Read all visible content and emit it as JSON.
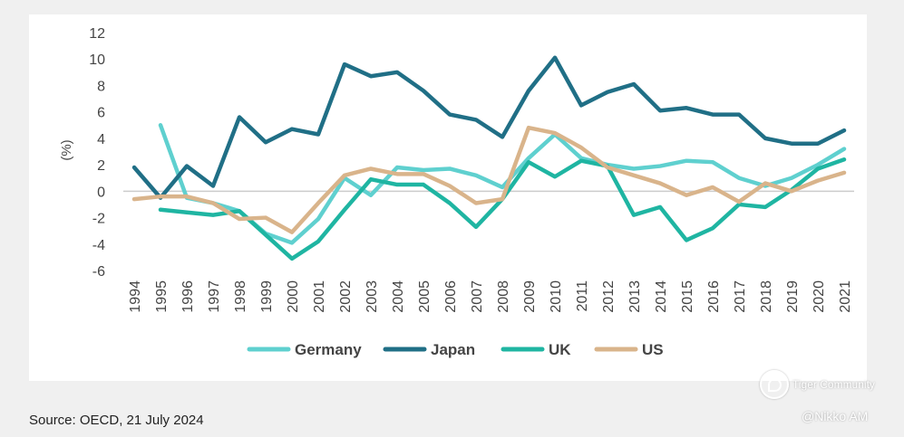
{
  "chart_data": {
    "type": "line",
    "title": "",
    "xlabel": "",
    "ylabel": "(%)",
    "ylim": [
      -6,
      12
    ],
    "yticks": [
      "12",
      "10",
      "8",
      "6",
      "4",
      "2",
      "0",
      "-2",
      "-4",
      "-6"
    ],
    "x": [
      "1994",
      "1995",
      "1996",
      "1997",
      "1998",
      "1999",
      "2000",
      "2001",
      "2002",
      "2003",
      "2004",
      "2005",
      "2006",
      "2007",
      "2008",
      "2009",
      "2010",
      "2011",
      "2012",
      "2013",
      "2014",
      "2015",
      "2016",
      "2017",
      "2018",
      "2019",
      "2020",
      "2021"
    ],
    "series": [
      {
        "name": "Germany",
        "color": "#5fd0cf",
        "values": [
          null,
          5.0,
          -0.5,
          -0.9,
          -1.5,
          -3.2,
          -3.9,
          -2.1,
          1.0,
          -0.3,
          1.8,
          1.6,
          1.7,
          1.2,
          0.3,
          2.5,
          4.3,
          2.5,
          2.0,
          1.7,
          1.9,
          2.3,
          2.2,
          1.0,
          0.4,
          1.0,
          2.0,
          3.2
        ]
      },
      {
        "name": "Japan",
        "color": "#206f86",
        "values": [
          1.8,
          -0.5,
          1.9,
          0.4,
          5.6,
          3.7,
          4.7,
          4.3,
          9.6,
          8.7,
          9.0,
          7.6,
          5.8,
          5.4,
          4.1,
          7.6,
          10.1,
          6.5,
          7.5,
          8.1,
          6.1,
          6.3,
          5.8,
          5.8,
          4.0,
          3.6,
          3.6,
          4.6
        ]
      },
      {
        "name": "UK",
        "color": "#1fb5a2",
        "values": [
          null,
          -1.4,
          -1.6,
          -1.8,
          -1.5,
          -3.3,
          -5.1,
          -3.8,
          -1.4,
          0.9,
          0.5,
          0.5,
          -0.9,
          -2.7,
          -0.6,
          2.2,
          1.1,
          2.3,
          1.9,
          -1.8,
          -1.2,
          -3.7,
          -2.8,
          -1.0,
          -1.2,
          0.1,
          1.7,
          2.4
        ]
      },
      {
        "name": "US",
        "color": "#d9b48b",
        "values": [
          -0.6,
          -0.4,
          -0.4,
          -0.9,
          -2.1,
          -2.0,
          -3.1,
          -0.9,
          1.2,
          1.7,
          1.3,
          1.3,
          0.4,
          -0.9,
          -0.6,
          4.8,
          4.4,
          3.3,
          1.8,
          1.2,
          0.6,
          -0.3,
          0.3,
          -0.8,
          0.6,
          0.0,
          0.8,
          1.4
        ]
      }
    ]
  },
  "source": "Source: OECD, 21 July 2024",
  "watermark": {
    "brand": "Tiger Community",
    "handle": "@Nikko AM"
  }
}
